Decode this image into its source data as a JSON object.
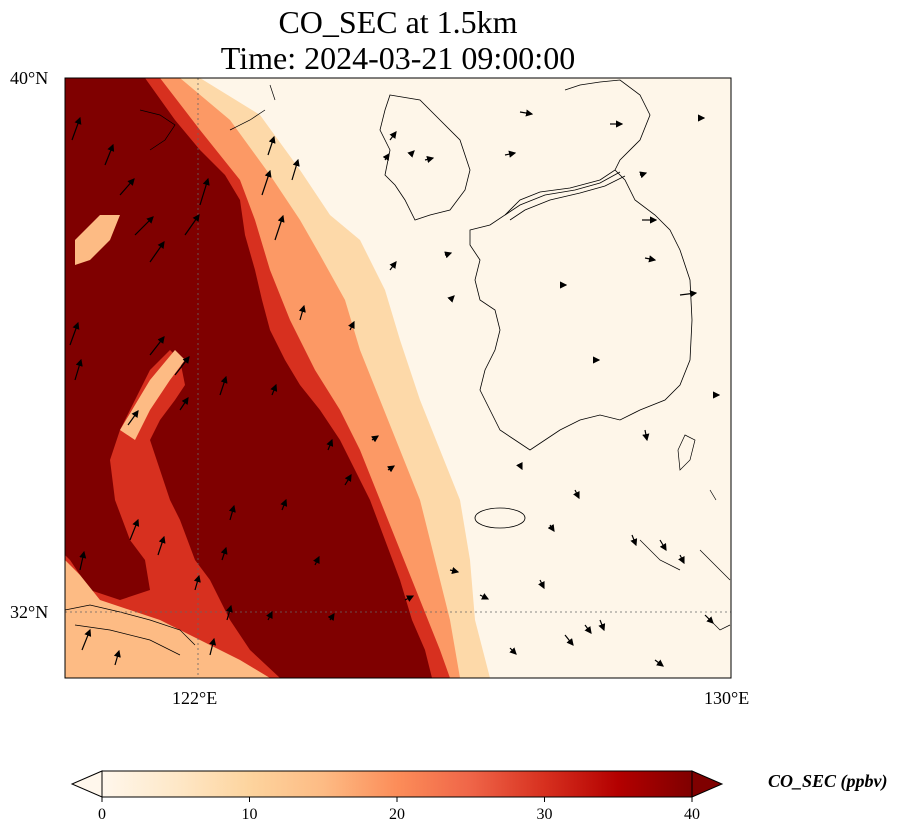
{
  "title": {
    "line1": "CO_SEC at 1.5km",
    "line2": "Time: 2024-03-21 09:00:00"
  },
  "axes": {
    "lat_labels": [
      "40°N",
      "32°N"
    ],
    "lon_labels": [
      "122°E",
      "130°E"
    ]
  },
  "colorbar": {
    "label": "CO_SEC (ppbv)",
    "ticks": [
      "0",
      "10",
      "20",
      "30",
      "40"
    ],
    "range": [
      0,
      40
    ],
    "extend": "both",
    "colormap": "OrRd",
    "colors": [
      "#fff7ec",
      "#fee8c8",
      "#fdd49e",
      "#fdbb84",
      "#fc8d59",
      "#ef6548",
      "#d7301f",
      "#b30000",
      "#7f0000"
    ]
  },
  "map": {
    "lon_range": [
      120,
      130
    ],
    "lat_range": [
      31,
      40
    ],
    "gridlines": {
      "lat": [
        32
      ],
      "lon": [
        122
      ]
    },
    "background_color": "#fef6e9",
    "max_color": "#7f0000"
  }
}
